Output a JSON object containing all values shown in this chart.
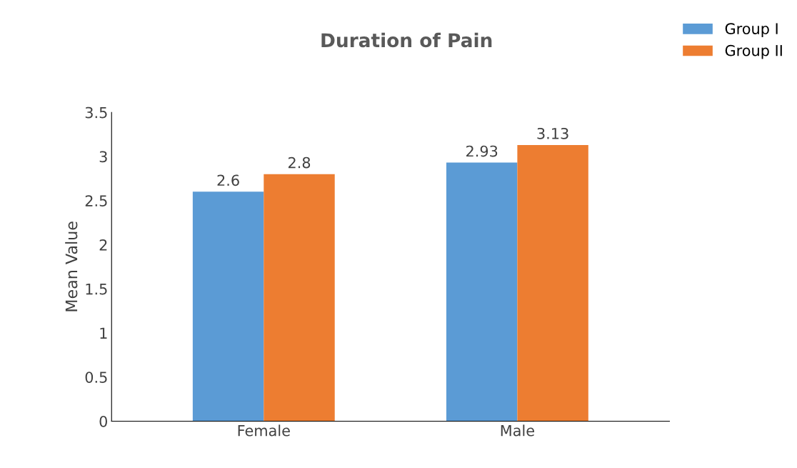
{
  "chart_data": {
    "type": "bar",
    "title": "Duration of Pain",
    "ylabel": "Mean Value",
    "categories": [
      "Female",
      "Male"
    ],
    "series": [
      {
        "name": "Group I",
        "color": "#5b9bd5",
        "values": [
          2.6,
          2.93
        ]
      },
      {
        "name": "Group II",
        "color": "#ed7d31",
        "values": [
          2.8,
          3.13
        ]
      }
    ],
    "ylim": [
      0,
      3.5
    ],
    "yticks": [
      0,
      0.5,
      1,
      1.5,
      2,
      2.5,
      3,
      3.5
    ],
    "grid": false,
    "legend": "top right",
    "data_labels": true
  }
}
